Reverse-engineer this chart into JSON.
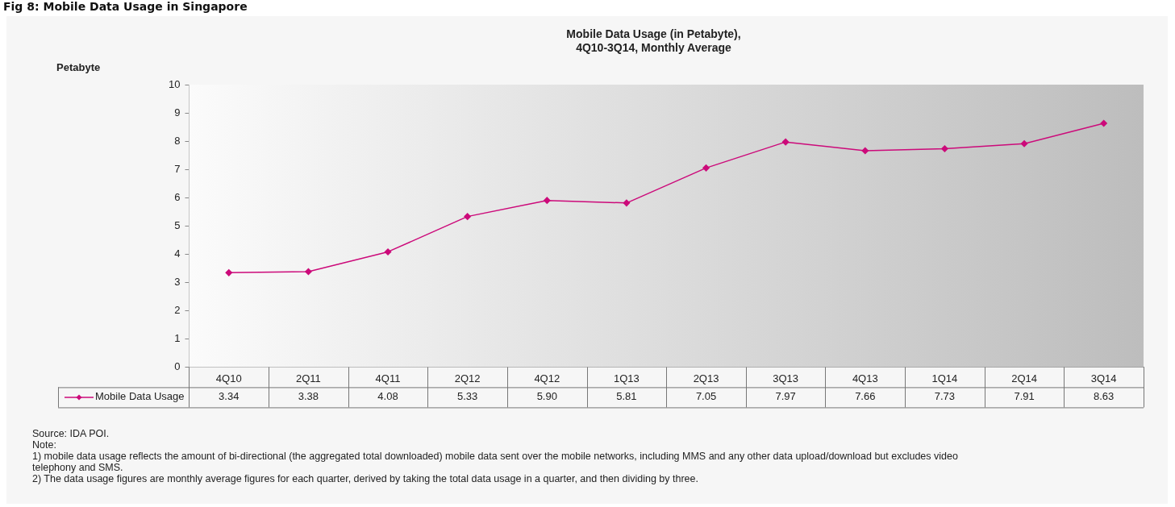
{
  "chart_data": {
    "type": "line",
    "title": "Mobile Data Usage (in Petabyte),\n4Q10-3Q14, Monthly Average",
    "categories": [
      "4Q10",
      "2Q11",
      "4Q11",
      "2Q12",
      "4Q12",
      "1Q13",
      "2Q13",
      "3Q13",
      "4Q13",
      "1Q14",
      "2Q14",
      "3Q14"
    ],
    "series": [
      {
        "name": "Mobile Data Usage",
        "color": "#cc0a7a",
        "values": [
          3.34,
          3.38,
          4.08,
          5.33,
          5.9,
          5.81,
          7.05,
          7.97,
          7.66,
          7.73,
          7.91,
          8.63
        ],
        "value_labels": [
          "3.34",
          "3.38",
          "4.08",
          "5.33",
          "5.90",
          "5.81",
          "7.05",
          "7.97",
          "7.66",
          "7.73",
          "7.91",
          "8.63"
        ]
      }
    ],
    "ylim": [
      0,
      10
    ],
    "yticks": [
      0,
      1,
      2,
      3,
      4,
      5,
      6,
      7,
      8,
      9,
      10
    ],
    "grid": false,
    "legend": "bottom",
    "marker": "diamond",
    "line_style": "solid",
    "annotations": [
      "Fig 8: Mobile Data Usage in Singapore",
      "Petabyte",
      "Source: IDA POI.",
      "Note:",
      "1)  mobile data usage reflects the amount of bi-directional (the aggregated total downloaded) mobile data sent over the mobile networks, including MMS and any other data upload/download but excludes video telephony and SMS.",
      "2)  The data usage figures are monthly average figures for each quarter, derived by taking the total data usage in a quarter, and then dividing by three."
    ]
  }
}
